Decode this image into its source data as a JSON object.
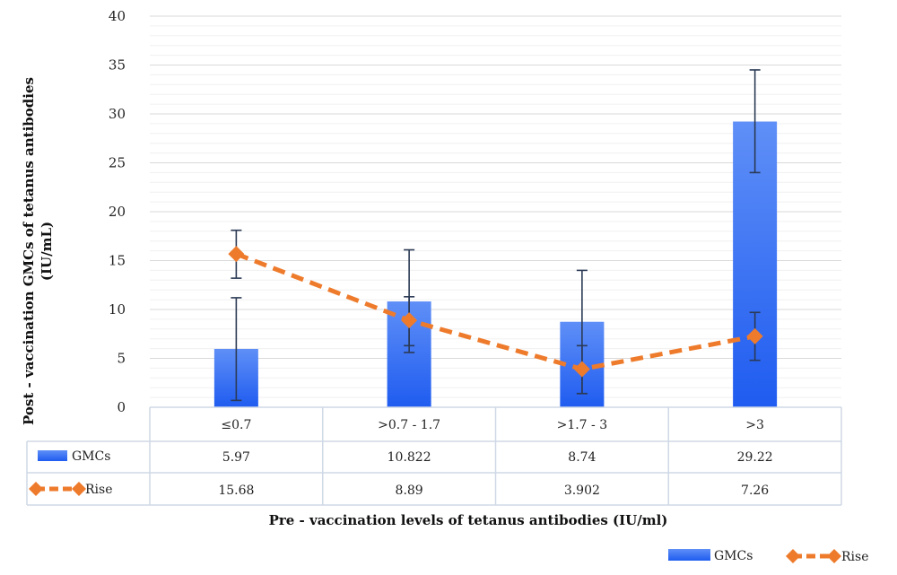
{
  "chart_data": {
    "type": "bar",
    "xlabel": "Pre - vaccination levels of tetanus antibodies (IU/ml)",
    "ylabel": "Post - vaccination GMCs of tetanus antibodies (IU/mL)",
    "ylim": [
      0,
      40
    ],
    "yticks": [
      0,
      5,
      10,
      15,
      20,
      25,
      30,
      35,
      40
    ],
    "grid": true,
    "legend": "bottom-right",
    "categories": [
      "≤0.7",
      ">0.7 - 1.7",
      ">1.7 - 3",
      ">3"
    ],
    "series": [
      {
        "name": "GMCs",
        "type": "bar",
        "color": "#1f5cf0",
        "values": [
          5.97,
          10.822,
          8.74,
          29.22
        ],
        "table_values": [
          "5.97",
          "10.822",
          "8.74",
          "29.22"
        ],
        "error_low": [
          0.7,
          6.3,
          1.4,
          24.0
        ],
        "error_high": [
          11.2,
          16.1,
          14.0,
          34.5
        ]
      },
      {
        "name": "Rise",
        "type": "line",
        "style": "dashed",
        "marker": "diamond",
        "color": "#ee7b2c",
        "values": [
          15.68,
          8.89,
          3.902,
          7.26
        ],
        "table_values": [
          "15.68",
          "8.89",
          "3.902",
          "7.26"
        ],
        "error_low": [
          13.2,
          5.6,
          1.4,
          4.8
        ],
        "error_high": [
          18.1,
          11.3,
          6.3,
          9.7
        ]
      }
    ]
  }
}
